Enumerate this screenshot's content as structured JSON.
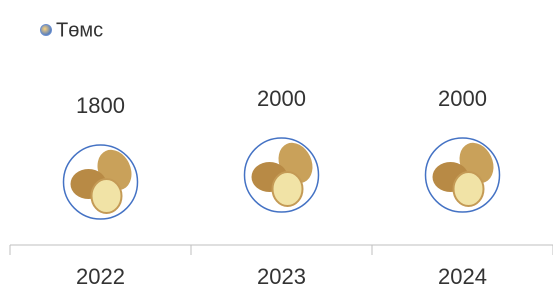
{
  "chart_data": {
    "type": "pictograph",
    "categories": [
      "2022",
      "2023",
      "2024"
    ],
    "series": [
      {
        "name": "Төмс",
        "color": "#4472c4",
        "values": [
          1800,
          2000,
          2000
        ]
      }
    ],
    "ylim": [
      0,
      2000
    ]
  }
}
